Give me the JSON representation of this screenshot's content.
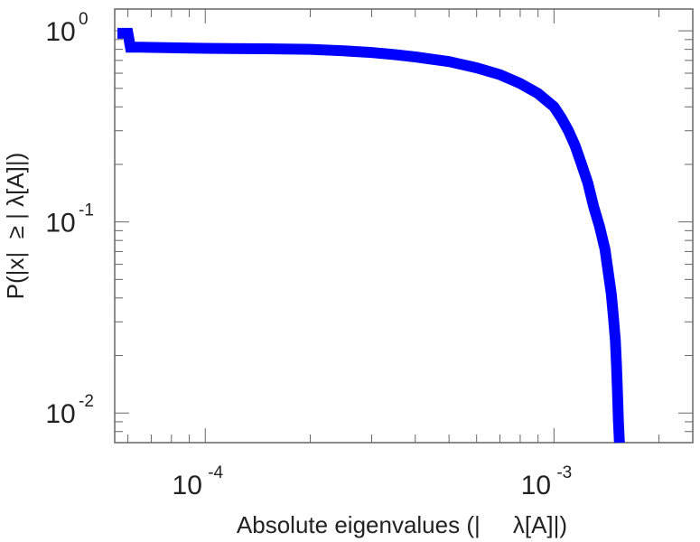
{
  "chart_data": {
    "type": "line",
    "title": "",
    "xlabel": "Absolute eigenvalues (|     λ[A]|)",
    "ylabel": "P(|x|  ≥ | λ[A]|)",
    "xscale": "log",
    "yscale": "log",
    "xlim": [
      5.5e-05,
      0.0025
    ],
    "ylim": [
      0.007,
      1.3
    ],
    "grid": false,
    "legend": "none",
    "x_ticks": [
      {
        "value": 0.0001,
        "base": "10",
        "exp": "-4"
      },
      {
        "value": 0.001,
        "base": "10",
        "exp": "-3"
      }
    ],
    "y_ticks": [
      {
        "value": 1,
        "base": "10",
        "exp": "0"
      },
      {
        "value": 0.1,
        "base": "10",
        "exp": "-1"
      },
      {
        "value": 0.01,
        "base": "10",
        "exp": "-2"
      }
    ],
    "series": [
      {
        "color": "#0000ff",
        "x": [
          5.6e-05,
          5.8e-05,
          6e-05,
          6.1e-05,
          6.5e-05,
          8e-05,
          0.0001,
          0.00015,
          0.0002,
          0.00025,
          0.0003,
          0.00035,
          0.0004,
          0.0005,
          0.0006,
          0.0007,
          0.0008,
          0.0009,
          0.001,
          0.00105,
          0.0011,
          0.00115,
          0.0012,
          0.00125,
          0.0013,
          0.00135,
          0.0014,
          0.00143,
          0.00146,
          0.00148,
          0.0015,
          0.00151,
          0.00152,
          0.00153,
          0.00154
        ],
        "y": [
          0.97,
          0.97,
          0.97,
          0.82,
          0.82,
          0.815,
          0.81,
          0.805,
          0.8,
          0.785,
          0.77,
          0.75,
          0.73,
          0.69,
          0.64,
          0.59,
          0.53,
          0.47,
          0.4,
          0.35,
          0.3,
          0.25,
          0.2,
          0.16,
          0.12,
          0.095,
          0.072,
          0.055,
          0.042,
          0.032,
          0.024,
          0.018,
          0.013,
          0.009,
          0.007
        ]
      }
    ]
  }
}
